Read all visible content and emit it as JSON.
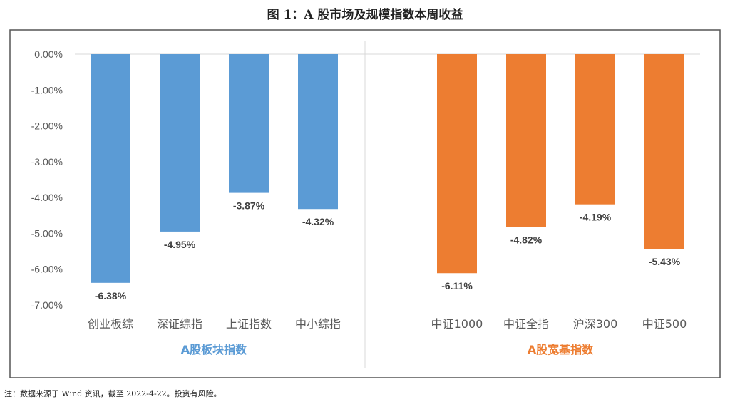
{
  "title": "图 1：A 股市场及规模指数本周收益",
  "note": "注：数据来源于 Wind 资讯，截至 2022-4-22。投资有风险。",
  "chart_data": {
    "type": "bar",
    "title": "图 1：A 股市场及规模指数本周收益",
    "ylim": [
      -7,
      0
    ],
    "yticks": [
      "0.00%",
      "-1.00%",
      "-2.00%",
      "-3.00%",
      "-4.00%",
      "-5.00%",
      "-6.00%",
      "-7.00%"
    ],
    "grid": false,
    "groups": [
      {
        "name": "A股板块指数",
        "color": "#5B9BD5",
        "categories": [
          "创业板综",
          "深证综指",
          "上证指数",
          "中小综指"
        ],
        "values": [
          -6.38,
          -4.95,
          -3.87,
          -4.32
        ],
        "labels": [
          "-6.38%",
          "-4.95%",
          "-3.87%",
          "-4.32%"
        ]
      },
      {
        "name": "A股宽基指数",
        "color": "#ED7D31",
        "categories": [
          "中证1000",
          "中证全指",
          "沪深300",
          "中证500"
        ],
        "values": [
          -6.11,
          -4.82,
          -4.19,
          -5.43
        ],
        "labels": [
          "-6.11%",
          "-4.82%",
          "-4.19%",
          "-5.43%"
        ]
      }
    ]
  }
}
